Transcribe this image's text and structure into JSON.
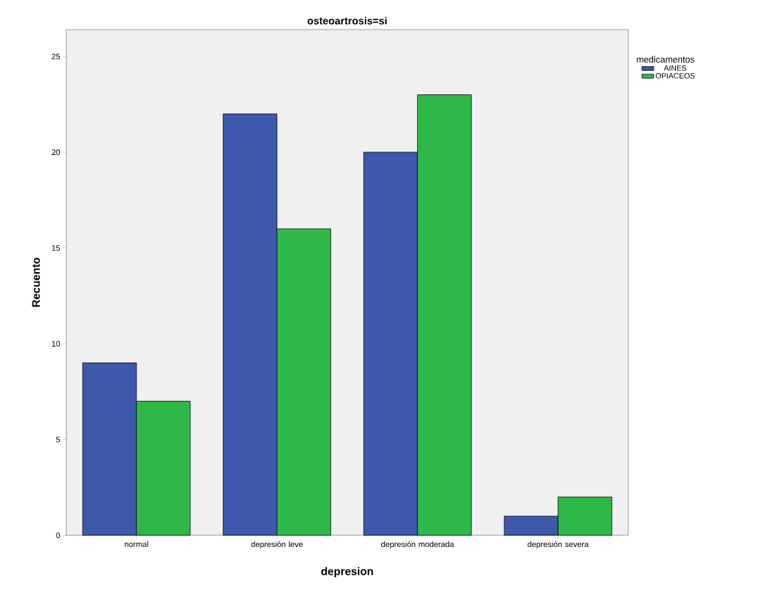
{
  "chart_data": {
    "type": "bar",
    "title": "osteoartrosis=si",
    "xlabel": "depresion",
    "ylabel": "Recuento",
    "legend_title": "medicamentos",
    "categories": [
      "normal",
      "depresión leve",
      "depresión moderada",
      "depresión severa"
    ],
    "series": [
      {
        "name": "AINES",
        "color": "#3e58ac",
        "values": [
          9,
          22,
          20,
          1
        ]
      },
      {
        "name": "OPIACEOS",
        "color": "#2eb848",
        "values": [
          7,
          16,
          23,
          2
        ]
      }
    ],
    "ylim": [
      0,
      26.4
    ],
    "yticks": [
      0,
      5,
      10,
      15,
      20,
      25
    ],
    "grid": false,
    "legend": "top right"
  }
}
